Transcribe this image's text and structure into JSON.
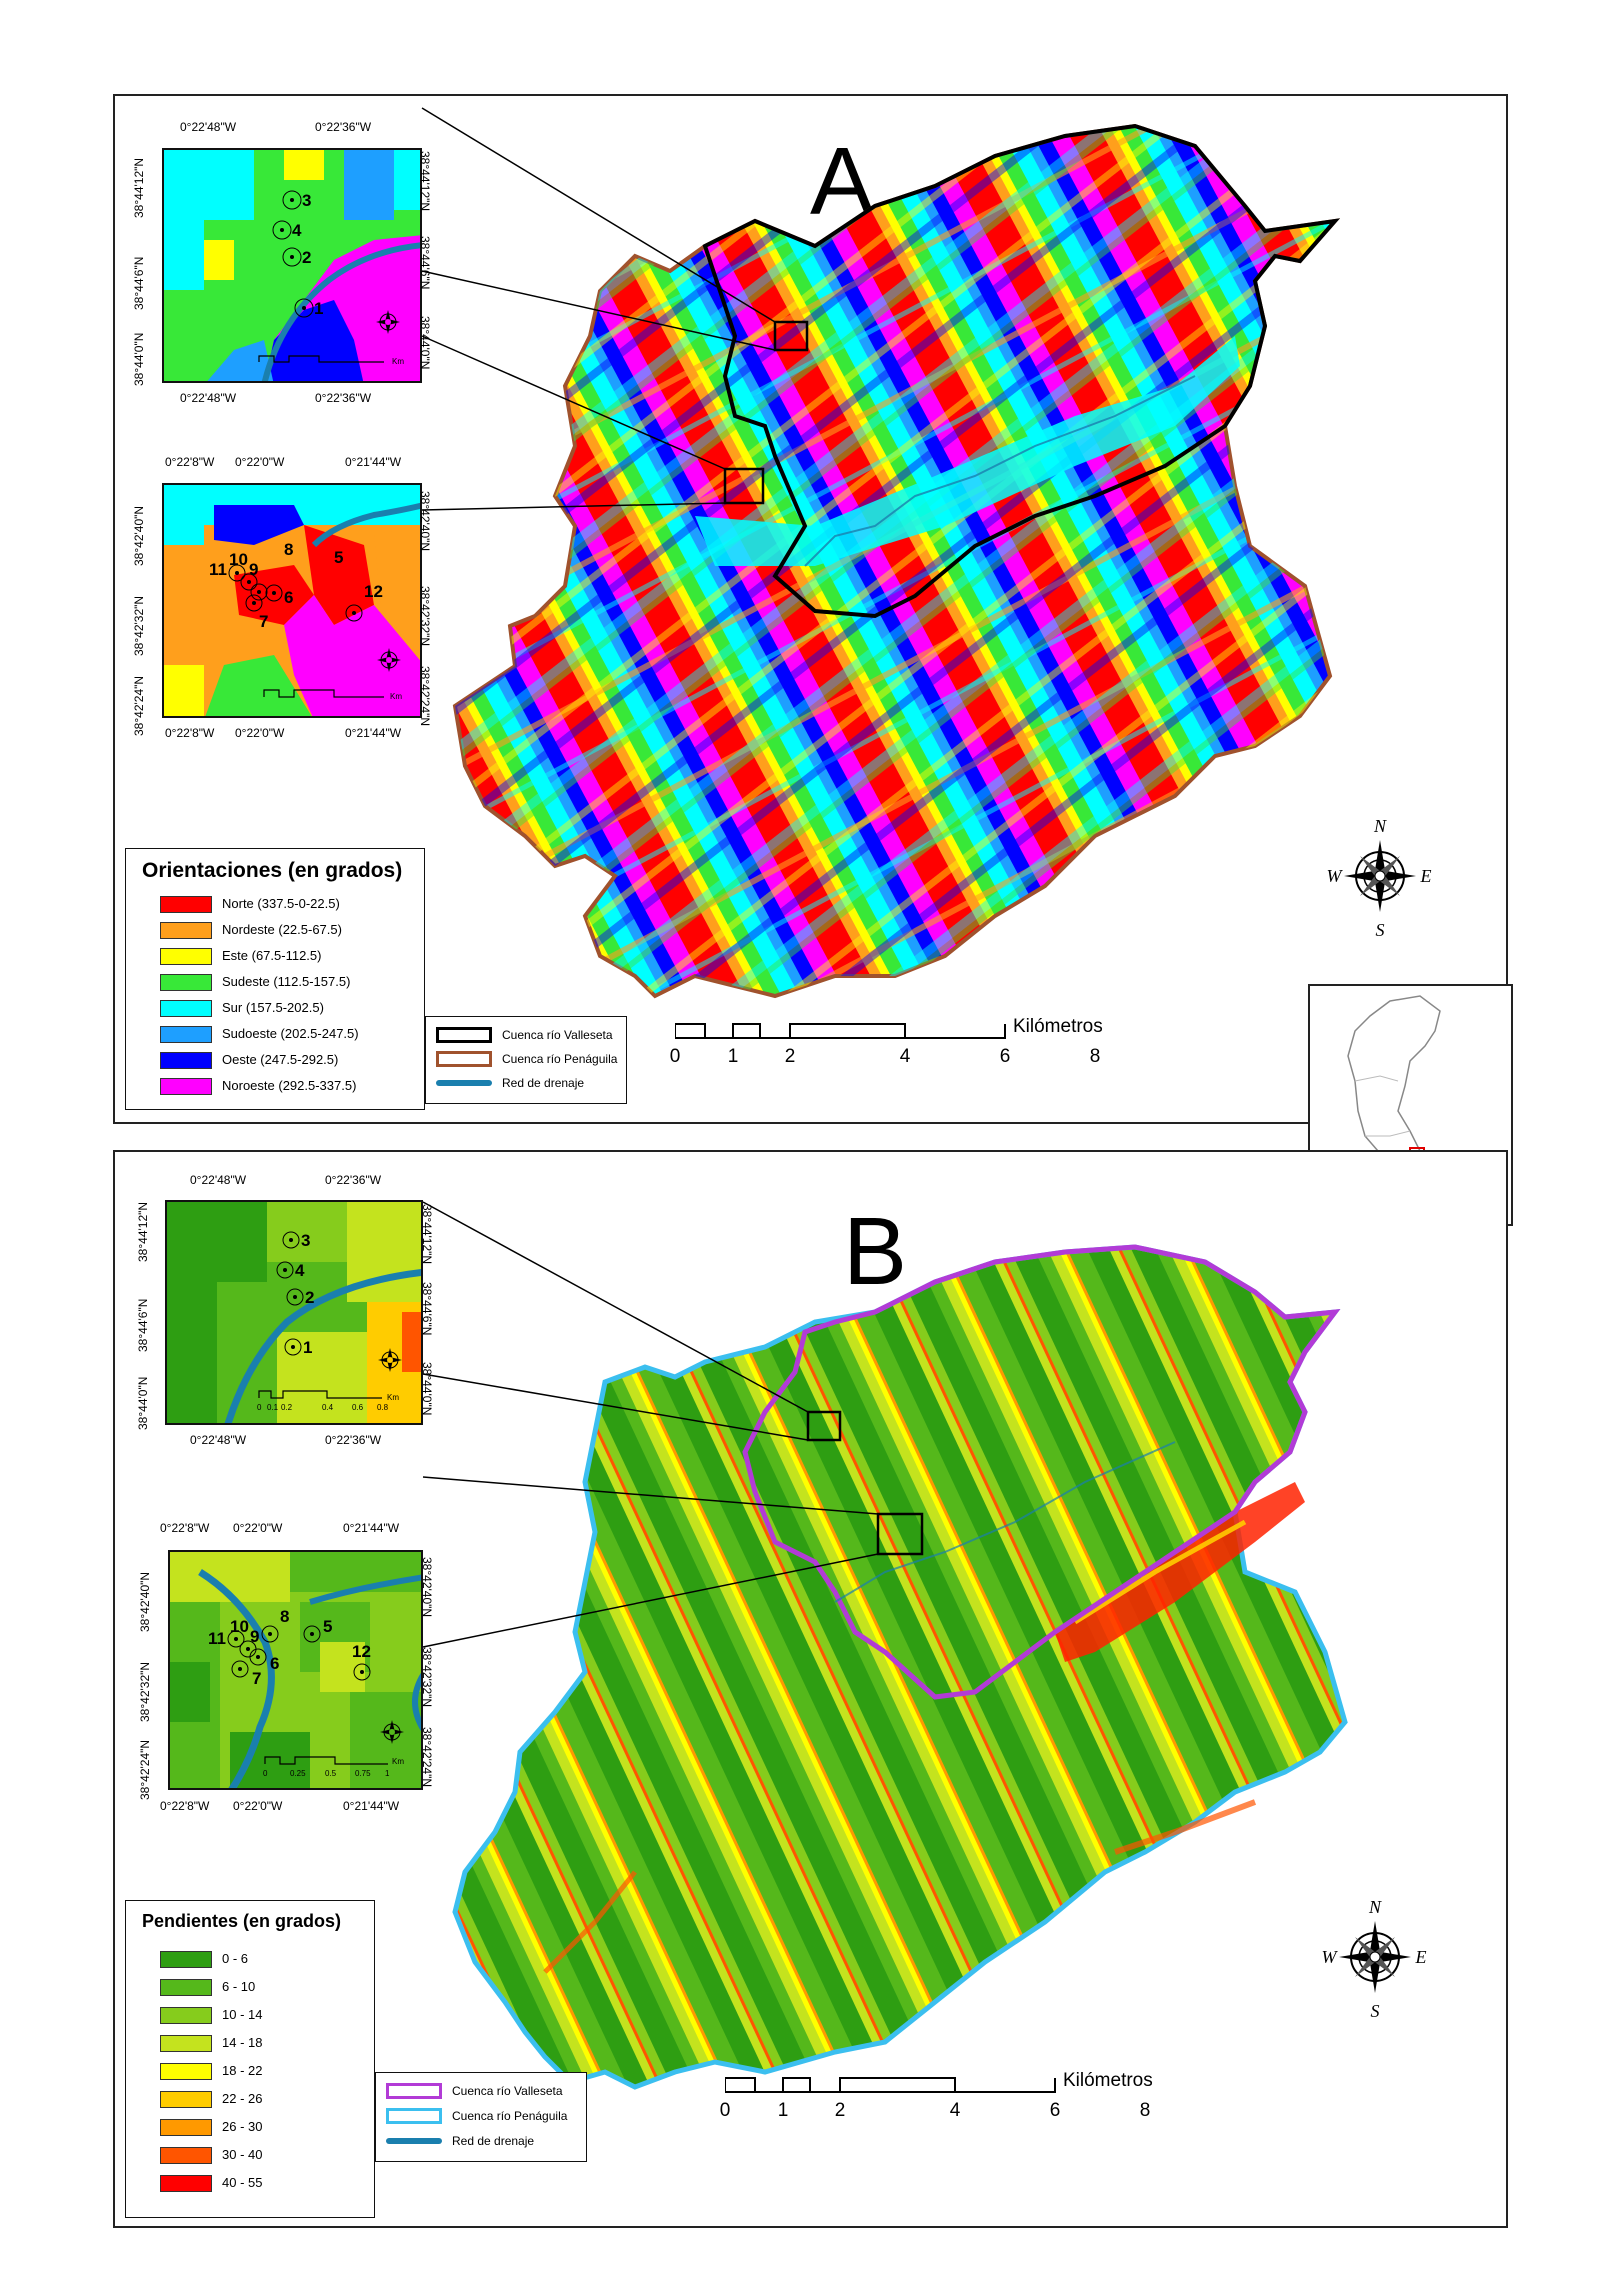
{
  "panel_a": {
    "letter": "A",
    "inset_top": {
      "lon_left": "0°22'48\"W",
      "lon_right": "0°22'36\"W",
      "lat_top": "38°44'12\"N",
      "lat_mid": "38°44'6\"N",
      "lat_bottom": "38°44'0\"N",
      "sites": [
        "3",
        "4",
        "2",
        "1"
      ],
      "scale_unit": "Km"
    },
    "inset_bottom": {
      "lon_left": "0°22'8\"W",
      "lon_mid": "0°22'0\"W",
      "lon_right": "0°21'44\"W",
      "lat_top": "38°42'40\"N",
      "lat_mid": "38°42'32\"N",
      "lat_bottom": "38°42'24\"N",
      "sites": [
        "11",
        "10",
        "9",
        "8",
        "5",
        "6",
        "7",
        "12"
      ],
      "scale_unit": "Km"
    },
    "legend": {
      "title": "Orientaciones (en grados)",
      "items": [
        {
          "label": "Norte (337.5-0-22.5)",
          "color": "#ff0000"
        },
        {
          "label": "Nordeste (22.5-67.5)",
          "color": "#ff9f1c"
        },
        {
          "label": "Este (67.5-112.5)",
          "color": "#ffff00"
        },
        {
          "label": "Sudeste (112.5-157.5)",
          "color": "#38e838"
        },
        {
          "label": "Sur (157.5-202.5)",
          "color": "#00ffff"
        },
        {
          "label": "Sudoeste (202.5-247.5)",
          "color": "#1e9fff"
        },
        {
          "label": "Oeste (247.5-292.5)",
          "color": "#0000ff"
        },
        {
          "label": "Noroeste (292.5-337.5)",
          "color": "#ff00ff"
        }
      ]
    },
    "boundaries": [
      {
        "label": "Cuenca río Valleseta",
        "color": "#000000"
      },
      {
        "label": "Cuenca río Penáguila",
        "color": "#a0522d"
      },
      {
        "label": "Red de drenaje",
        "color": "#1a7fae"
      }
    ],
    "scale": {
      "unit": "Kilómetros",
      "ticks": [
        "0",
        "1",
        "2",
        "4",
        "6",
        "8"
      ]
    }
  },
  "panel_b": {
    "letter": "B",
    "inset_top": {
      "lon_left": "0°22'48\"W",
      "lon_right": "0°22'36\"W",
      "lat_top": "38°44'12\"N",
      "lat_mid": "38°44'6\"N",
      "lat_bottom": "38°44'0\"N",
      "sites": [
        "3",
        "4",
        "2",
        "1"
      ],
      "scale_ticks": [
        "0",
        "0.1",
        "0.2",
        "0.4",
        "0.6",
        "0.8"
      ],
      "scale_unit": "Km"
    },
    "inset_bottom": {
      "lon_left": "0°22'8\"W",
      "lon_mid": "0°22'0\"W",
      "lon_right": "0°21'44\"W",
      "lat_top": "38°42'40\"N",
      "lat_mid": "38°42'32\"N",
      "lat_bottom": "38°42'24\"N",
      "sites": [
        "11",
        "10",
        "9",
        "8",
        "5",
        "6",
        "7",
        "12"
      ],
      "scale_ticks": [
        "0",
        "0.25",
        "0.5",
        "0.75",
        "1"
      ],
      "scale_unit": "Km"
    },
    "legend": {
      "title": "Pendientes (en grados)",
      "items": [
        {
          "label": "0 - 6",
          "color": "#2e9e12"
        },
        {
          "label": "6 - 10",
          "color": "#55b81b"
        },
        {
          "label": "10 - 14",
          "color": "#86cc1c"
        },
        {
          "label": "14 - 18",
          "color": "#c4e31e"
        },
        {
          "label": "18 - 22",
          "color": "#ffff00"
        },
        {
          "label": "22 - 26",
          "color": "#ffcc00"
        },
        {
          "label": "26 - 30",
          "color": "#ff9900"
        },
        {
          "label": "30 - 40",
          "color": "#ff5500"
        },
        {
          "label": "40 - 55",
          "color": "#ff0000"
        }
      ]
    },
    "boundaries": [
      {
        "label": "Cuenca río Valleseta",
        "color": "#b23bd6"
      },
      {
        "label": "Cuenca río Penáguila",
        "color": "#3bbfef"
      },
      {
        "label": "Red de drenaje",
        "color": "#1a7fae"
      }
    ],
    "scale": {
      "unit": "Kilómetros",
      "ticks": [
        "0",
        "1",
        "2",
        "4",
        "6",
        "8"
      ]
    }
  },
  "compass": {
    "n": "N",
    "s": "S",
    "e": "E",
    "w": "W"
  }
}
